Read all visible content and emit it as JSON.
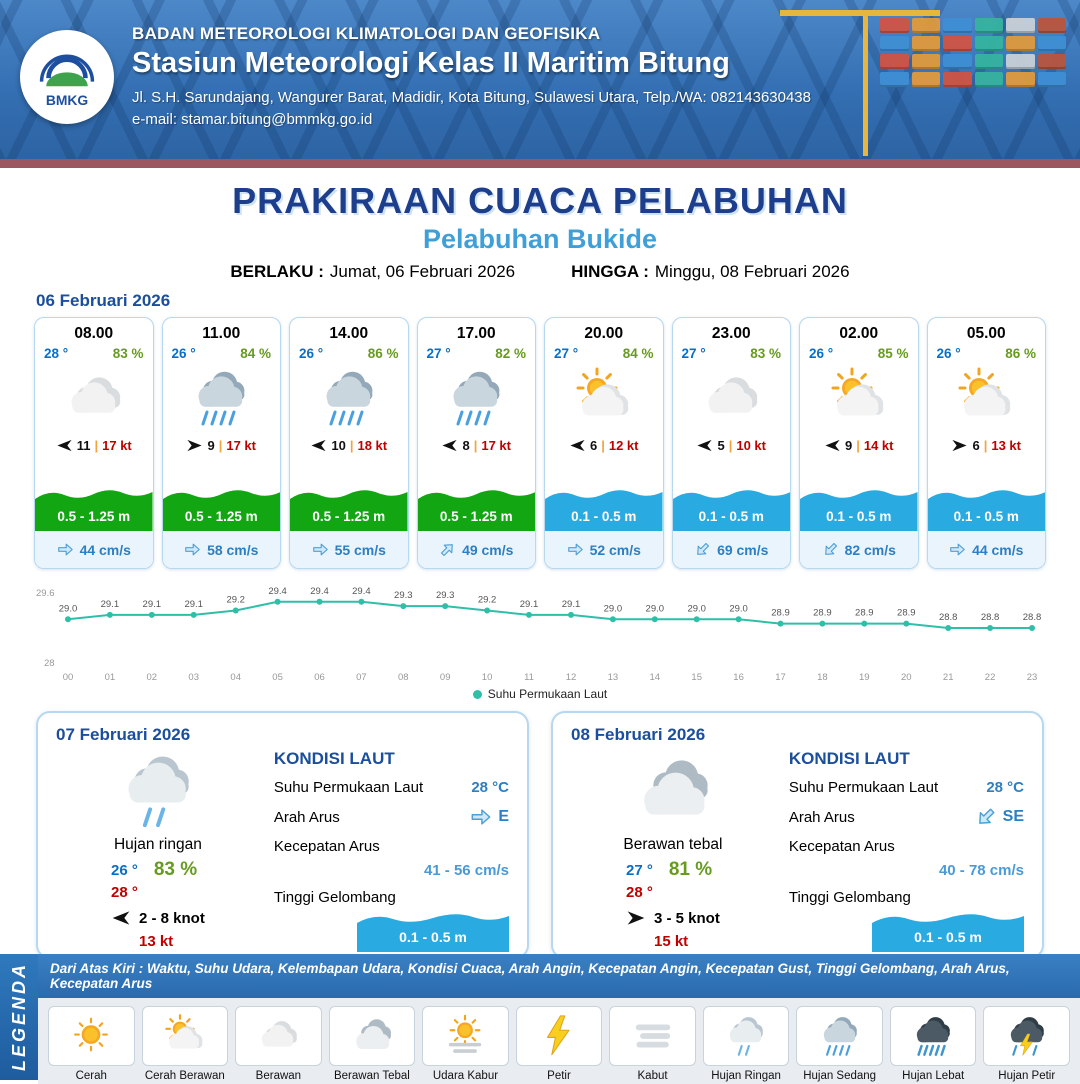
{
  "colors": {
    "header_blue": "#2f6bb0",
    "navy": "#1c3e8d",
    "sky_blue": "#3fa0d9",
    "date_blue": "#1b4e9b",
    "temp_blue": "#0a6fc4",
    "humidity_green": "#679b1f",
    "gust_red": "#c00000",
    "wave_green": "#12a712",
    "wave_blue": "#29abe2",
    "current_blue": "#2b7fc2",
    "chart_teal": "#2fbfa8",
    "card_border": "#b7d8ee"
  },
  "header": {
    "logo_text": "BMKG",
    "agency": "BADAN METEOROLOGI KLIMATOLOGI DAN GEOFISIKA",
    "station": "Stasiun Meteorologi Kelas II Maritim Bitung",
    "address": "Jl. S.H. Sarundajang, Wangurer Barat, Madidir, Kota Bitung, Sulawesi Utara, Telp./WA: 082143630438",
    "email": "e-mail: stamar.bitung@bmmkg.go.id"
  },
  "title": {
    "main": "PRAKIRAAN CUACA PELABUHAN",
    "subtitle": "Pelabuhan Bukide",
    "valid_label": "BERLAKU :",
    "valid_value": "Jumat, 06 Februari 2026",
    "until_label": "HINGGA :",
    "until_value": "Minggu, 08 Februari 2026"
  },
  "forecast": {
    "date": "06 Februari 2026",
    "cards": [
      {
        "time": "08.00",
        "temp": "28 °",
        "humidity": "83 %",
        "icon": "berawan",
        "wind_dir_deg": 180,
        "wind_speed": "11",
        "wind_gust": "17 kt",
        "wave": "0.5 - 1.25 m",
        "wave_color": "green",
        "current_dir_deg": 0,
        "current": "44 cm/s"
      },
      {
        "time": "11.00",
        "temp": "26 °",
        "humidity": "84 %",
        "icon": "hujan-sedang",
        "wind_dir_deg": 0,
        "wind_speed": "9",
        "wind_gust": "17 kt",
        "wave": "0.5 - 1.25 m",
        "wave_color": "green",
        "current_dir_deg": 0,
        "current": "58 cm/s"
      },
      {
        "time": "14.00",
        "temp": "26 °",
        "humidity": "86 %",
        "icon": "hujan-sedang",
        "wind_dir_deg": 180,
        "wind_speed": "10",
        "wind_gust": "18 kt",
        "wave": "0.5 - 1.25 m",
        "wave_color": "green",
        "current_dir_deg": 0,
        "current": "55 cm/s"
      },
      {
        "time": "17.00",
        "temp": "27 °",
        "humidity": "82 %",
        "icon": "hujan-sedang",
        "wind_dir_deg": 180,
        "wind_speed": "8",
        "wind_gust": "17 kt",
        "wave": "0.5 - 1.25 m",
        "wave_color": "green",
        "current_dir_deg": -45,
        "current": "49 cm/s"
      },
      {
        "time": "20.00",
        "temp": "27 °",
        "humidity": "84 %",
        "icon": "cerah-berawan",
        "wind_dir_deg": 180,
        "wind_speed": "6",
        "wind_gust": "12 kt",
        "wave": "0.1 - 0.5 m",
        "wave_color": "blue",
        "current_dir_deg": 0,
        "current": "52 cm/s"
      },
      {
        "time": "23.00",
        "temp": "27 °",
        "humidity": "83 %",
        "icon": "berawan",
        "wind_dir_deg": 180,
        "wind_speed": "5",
        "wind_gust": "10 kt",
        "wave": "0.1 - 0.5 m",
        "wave_color": "blue",
        "current_dir_deg": 135,
        "current": "69 cm/s"
      },
      {
        "time": "02.00",
        "temp": "26 °",
        "humidity": "85 %",
        "icon": "cerah-berawan",
        "wind_dir_deg": 180,
        "wind_speed": "9",
        "wind_gust": "14 kt",
        "wave": "0.1 - 0.5 m",
        "wave_color": "blue",
        "current_dir_deg": 135,
        "current": "82 cm/s"
      },
      {
        "time": "05.00",
        "temp": "26 °",
        "humidity": "86 %",
        "icon": "cerah-berawan",
        "wind_dir_deg": 0,
        "wind_speed": "6",
        "wind_gust": "13 kt",
        "wave": "0.1 - 0.5 m",
        "wave_color": "blue",
        "current_dir_deg": 0,
        "current": "44 cm/s"
      }
    ]
  },
  "chart_data": {
    "type": "line",
    "x_labels": [
      "00",
      "01",
      "02",
      "03",
      "04",
      "05",
      "06",
      "07",
      "08",
      "09",
      "10",
      "11",
      "12",
      "13",
      "14",
      "15",
      "16",
      "17",
      "18",
      "19",
      "20",
      "21",
      "22",
      "23"
    ],
    "series": [
      {
        "name": "Suhu Permukaan Laut",
        "values": [
          29.0,
          29.1,
          29.1,
          29.1,
          29.2,
          29.4,
          29.4,
          29.4,
          29.3,
          29.3,
          29.2,
          29.1,
          29.1,
          29.0,
          29.0,
          29.0,
          29.0,
          28.9,
          28.9,
          28.9,
          28.9,
          28.8,
          28.8,
          28.8
        ]
      }
    ],
    "ylim": [
      28,
      29.6
    ],
    "ytick_labels": [
      "29.6",
      "28"
    ],
    "line_color": "#2fbfa8",
    "marker": "circle",
    "point_labels": true,
    "grid": false,
    "legend_position": "bottom",
    "title": "",
    "xlabel": "",
    "ylabel": ""
  },
  "daily": [
    {
      "date": "07 Februari 2026",
      "icon": "hujan-ringan",
      "condition": "Hujan ringan",
      "temp_min": "26 °",
      "humidity": "83 %",
      "temp_max": "28 °",
      "wind_dir_deg": 180,
      "wind_range": "2 - 8 knot",
      "wind_gust": "13 kt",
      "sea": {
        "heading": "KONDISI LAUT",
        "sst_label": "Suhu Permukaan Laut",
        "sst": "28 °C",
        "current_dir_label": "Arah Arus",
        "current_dir_deg": 0,
        "current_dir": "E",
        "current_speed_label": "Kecepatan Arus",
        "current_speed": "41 - 56 cm/s",
        "wave_label": "Tinggi Gelombang",
        "wave": "0.1 - 0.5 m"
      }
    },
    {
      "date": "08 Februari 2026",
      "icon": "berawan-tebal",
      "condition": "Berawan tebal",
      "temp_min": "27 °",
      "humidity": "81 %",
      "temp_max": "28 °",
      "wind_dir_deg": 0,
      "wind_range": "3 - 5 knot",
      "wind_gust": "15 kt",
      "sea": {
        "heading": "KONDISI LAUT",
        "sst_label": "Suhu Permukaan Laut",
        "sst": "28 °C",
        "current_dir_label": "Arah Arus",
        "current_dir_deg": 135,
        "current_dir": "SE",
        "current_speed_label": "Kecepatan Arus",
        "current_speed": "40 - 78 cm/s",
        "wave_label": "Tinggi Gelombang",
        "wave": "0.1 - 0.5 m"
      }
    }
  ],
  "legend": {
    "title": "LEGENDA",
    "note": "Dari Atas Kiri : Waktu, Suhu Udara, Kelembapan Udara, Kondisi Cuaca, Arah Angin, Kecepatan Angin, Kecepatan Gust, Tinggi Gelombang, Arah Arus, Kecepatan Arus",
    "items": [
      {
        "icon": "cerah",
        "label": "Cerah"
      },
      {
        "icon": "cerah-berawan",
        "label": "Cerah Berawan"
      },
      {
        "icon": "berawan",
        "label": "Berawan"
      },
      {
        "icon": "berawan-tebal",
        "label": "Berawan Tebal"
      },
      {
        "icon": "udara-kabur",
        "label": "Udara Kabur"
      },
      {
        "icon": "petir",
        "label": "Petir"
      },
      {
        "icon": "kabut",
        "label": "Kabut"
      },
      {
        "icon": "hujan-ringan",
        "label": "Hujan Ringan"
      },
      {
        "icon": "hujan-sedang",
        "label": "Hujan Sedang"
      },
      {
        "icon": "hujan-lebat",
        "label": "Hujan Lebat"
      },
      {
        "icon": "hujan-petir",
        "label": "Hujan Petir"
      }
    ]
  }
}
